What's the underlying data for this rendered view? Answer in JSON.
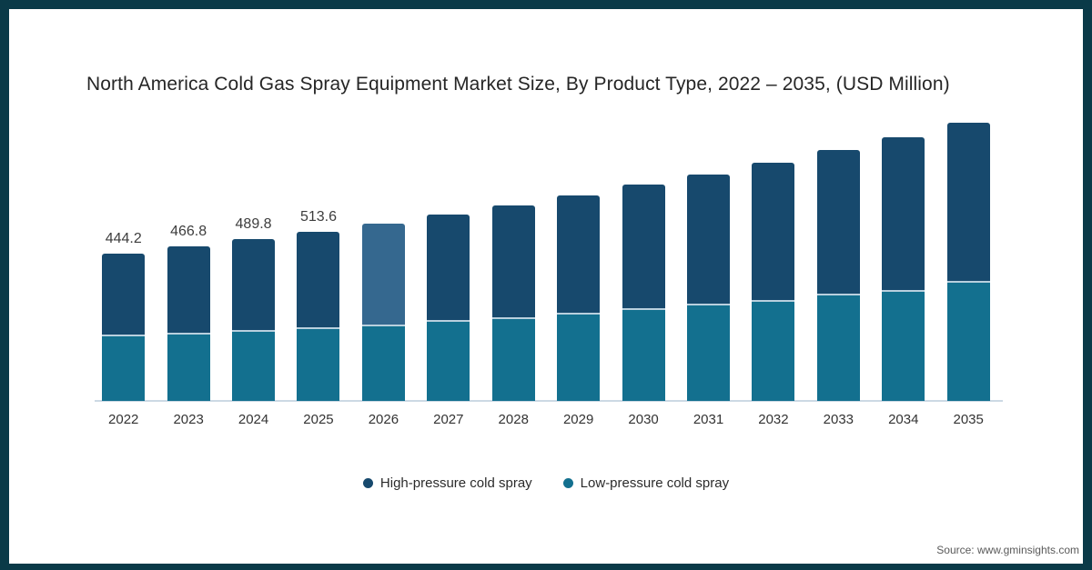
{
  "frame": {
    "border_color": "#0a3a48",
    "background": "#ffffff"
  },
  "title": "North America Cold Gas Spray Equipment Market Size, By Product Type, 2022 – 2035, (USD Million)",
  "source": "Source: www.gminsights.com",
  "legend": [
    {
      "label": "High-pressure cold spray",
      "color": "#17496d"
    },
    {
      "label": "Low-pressure cold spray",
      "color": "#13708f"
    }
  ],
  "chart_data": {
    "type": "bar",
    "stacked": true,
    "title": "North America Cold Gas Spray Equipment Market Size, By Product Type, 2022 – 2035, (USD Million)",
    "unit": "USD Million",
    "categories": [
      "2022",
      "2023",
      "2024",
      "2025",
      "2026",
      "2027",
      "2028",
      "2029",
      "2030",
      "2031",
      "2032",
      "2033",
      "2034",
      "2035"
    ],
    "series": [
      {
        "name": "High-pressure cold spray",
        "color": "#17496d",
        "values": [
          244.2,
          260.8,
          275.8,
          289.6,
          306,
          320,
          339,
          356,
          375,
          393,
          416,
          435,
          463,
          479
        ]
      },
      {
        "name": "Low-pressure cold spray",
        "color": "#13708f",
        "values": [
          200,
          206,
          214,
          224,
          233,
          246,
          255,
          268,
          280,
          295,
          307,
          325,
          337,
          363
        ]
      }
    ],
    "totals": [
      444.2,
      466.8,
      489.8,
      513.6,
      539,
      566,
      594,
      624,
      655,
      688,
      723,
      760,
      800,
      842
    ],
    "data_labels": [
      "444.2",
      "466.8",
      "489.8",
      "513.6",
      "",
      "",
      "",
      "",
      "",
      "",
      "",
      "",
      "",
      ""
    ],
    "highlighted_category": "2026",
    "highlight_color": "#35688f",
    "axis_line_color": "#ccd9e4",
    "segment_divider_color": "#b9d0de",
    "ylim": [
      0,
      880
    ],
    "grid": false,
    "legend_position": "bottom",
    "xlabel": "",
    "ylabel": ""
  }
}
